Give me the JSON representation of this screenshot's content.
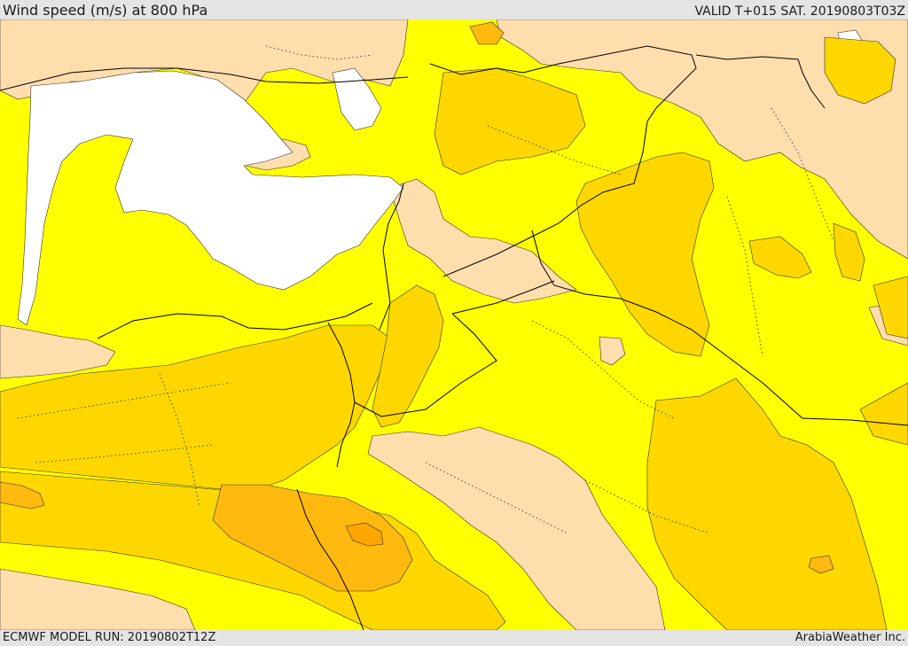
{
  "header": {
    "title": "Wind speed (m/s) at 800 hPa",
    "valid_time": "VALID T+015 SAT. 20190803T03Z"
  },
  "footer": {
    "model_run": "ECMWF MODEL RUN: 20190802T12Z",
    "credit": "ArabiaWeather Inc."
  },
  "map": {
    "variable": "wind speed",
    "units": "m/s",
    "level": "800 hPa",
    "fill_colors": {
      "calm": "#ffffff",
      "light": "#ffdead",
      "moderate": "#ffff00",
      "fresh": "#ffd700",
      "strong": "#ffb90f",
      "stronger": "#ffa500"
    },
    "border_color": "#000000"
  }
}
